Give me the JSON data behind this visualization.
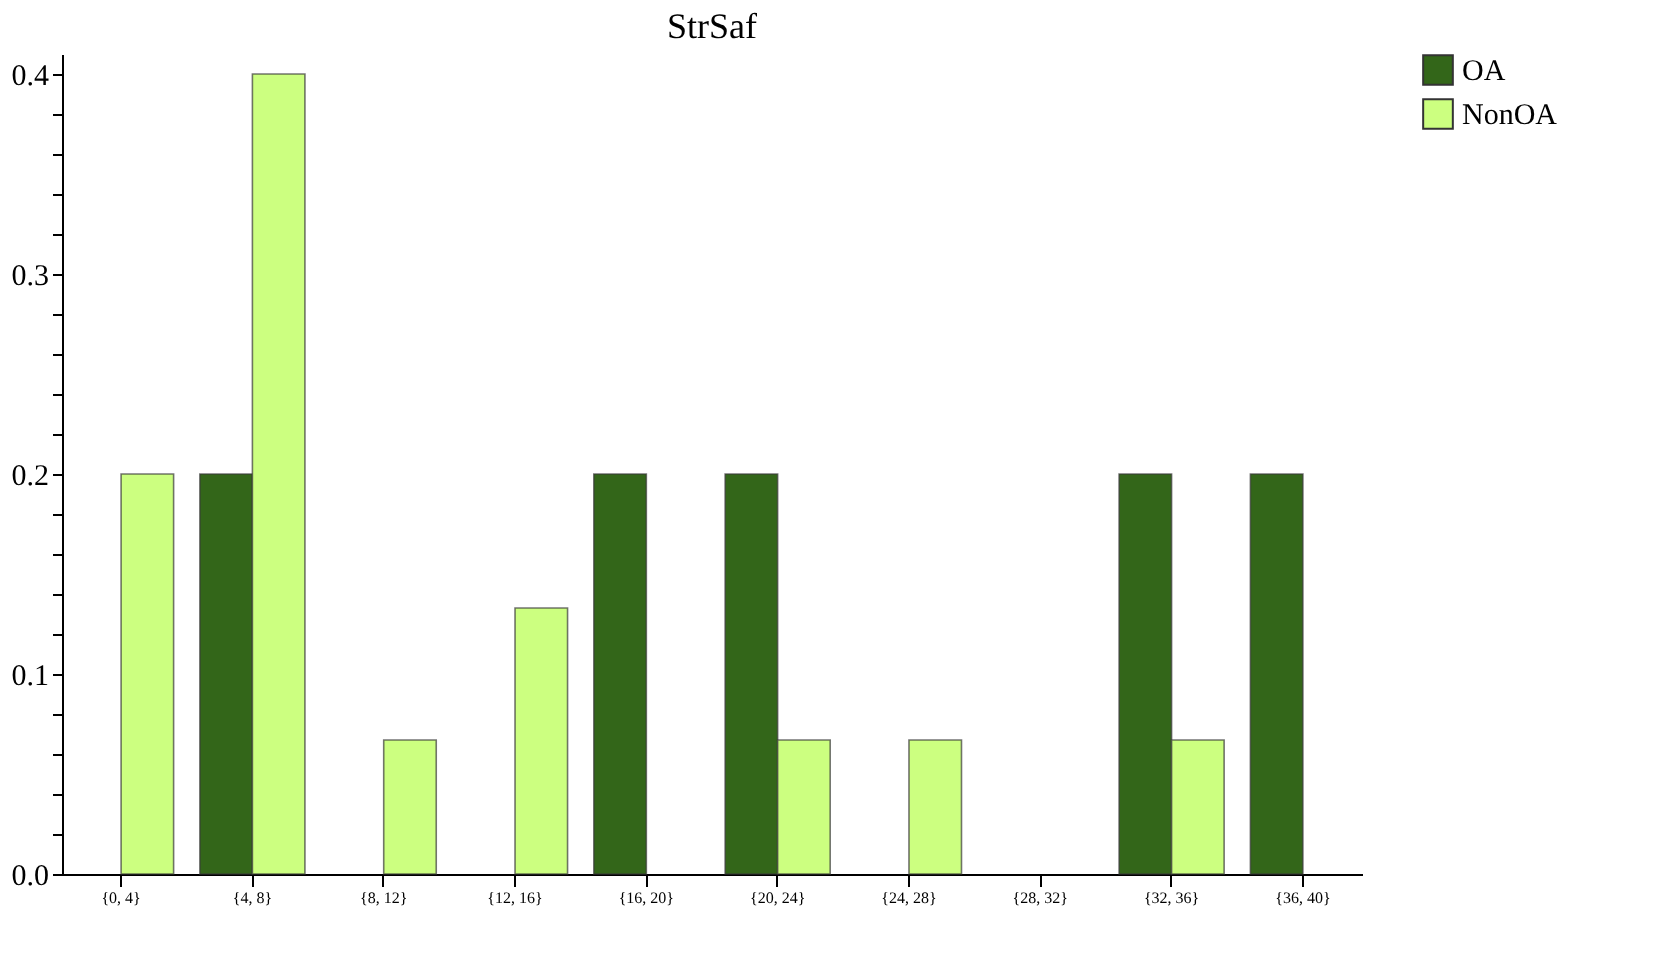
{
  "chart_data": {
    "type": "bar",
    "title": "StrSaf",
    "categories": [
      "{0, 4}",
      "{4, 8}",
      "{8, 12}",
      "{12, 16}",
      "{16, 20}",
      "{20, 24}",
      "{24, 28}",
      "{28, 32}",
      "{32, 36}",
      "{36, 40}"
    ],
    "series": [
      {
        "name": "OA",
        "color": "#336619",
        "values": [
          null,
          0.2,
          null,
          null,
          0.2,
          0.2,
          null,
          null,
          0.2,
          0.2
        ]
      },
      {
        "name": "NonOA",
        "color": "#ccff80",
        "values": [
          0.2,
          0.4,
          0.067,
          0.133,
          null,
          0.067,
          0.067,
          null,
          0.067,
          null
        ]
      }
    ],
    "ylim": [
      0,
      0.41
    ],
    "yticks": [
      {
        "value": 0,
        "label": "0.0"
      },
      {
        "value": 0.02,
        "label": null
      },
      {
        "value": 0.04,
        "label": null
      },
      {
        "value": 0.06,
        "label": null
      },
      {
        "value": 0.08,
        "label": null
      },
      {
        "value": 0.1,
        "label": "0.1"
      },
      {
        "value": 0.12,
        "label": null
      },
      {
        "value": 0.14,
        "label": null
      },
      {
        "value": 0.16,
        "label": null
      },
      {
        "value": 0.18,
        "label": null
      },
      {
        "value": 0.2,
        "label": "0.2"
      },
      {
        "value": 0.22,
        "label": null
      },
      {
        "value": 0.24,
        "label": null
      },
      {
        "value": 0.26,
        "label": null
      },
      {
        "value": 0.28,
        "label": null
      },
      {
        "value": 0.3,
        "label": "0.3"
      },
      {
        "value": 0.32,
        "label": null
      },
      {
        "value": 0.34,
        "label": null
      },
      {
        "value": 0.36,
        "label": null
      },
      {
        "value": 0.38,
        "label": null
      },
      {
        "value": 0.4,
        "label": "0.4"
      }
    ],
    "grid": false,
    "legend": "right"
  }
}
